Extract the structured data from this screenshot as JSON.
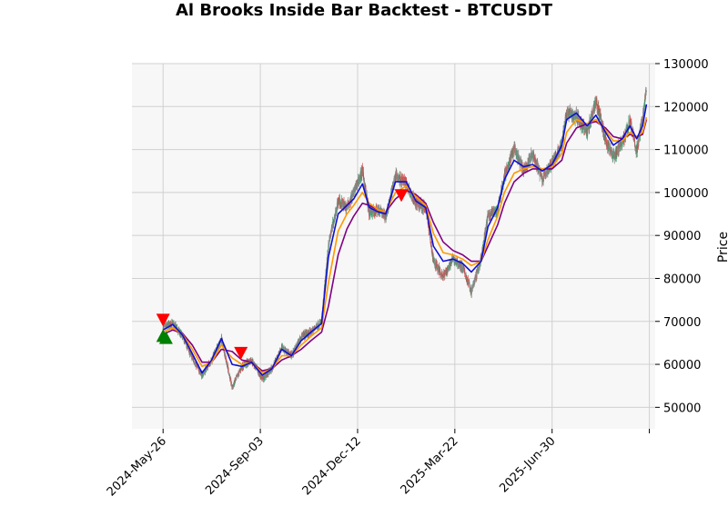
{
  "chart_data": {
    "type": "candlestick",
    "title": "Al Brooks Inside Bar Backtest - BTCUSDT",
    "ylabel": "Price",
    "xlabel": "",
    "ylim": [
      45000,
      130000
    ],
    "xlim": [
      "2024-04-24",
      "2025-10-14"
    ],
    "y_ticks": [
      50000,
      60000,
      70000,
      80000,
      90000,
      100000,
      110000,
      120000,
      130000
    ],
    "y_tick_labels": [
      "50000",
      "60000",
      "70000",
      "80000",
      "90000",
      "100000",
      "110000",
      "120000",
      "130000"
    ],
    "x_ticks": [
      "2024-05-26",
      "2024-09-03",
      "2024-12-12",
      "2025-03-22",
      "2025-06-30",
      "2025-10-08"
    ],
    "x_tick_labels": [
      "2024-May-26",
      "2024-Sep-03",
      "2024-Dec-12",
      "2025-Mar-22",
      "2025-Jun-30",
      ""
    ],
    "grid": true,
    "colors": {
      "up": "#3a9e6e",
      "down": "#d64545",
      "neutral": "#888888",
      "line_fast": "#1010d0",
      "line_mid": "#ff9900",
      "line_slow": "#800080",
      "buy_marker": "#008000",
      "sell_marker": "#ff0000",
      "plot_bg": "#f7f7f7",
      "grid": "#d0d0d0"
    },
    "price_path": [
      [
        "2024-05-26",
        68500
      ],
      [
        "2024-06-05",
        69500
      ],
      [
        "2024-06-15",
        66500
      ],
      [
        "2024-06-25",
        61500
      ],
      [
        "2024-07-05",
        57500
      ],
      [
        "2024-07-15",
        61000
      ],
      [
        "2024-07-25",
        66000
      ],
      [
        "2024-08-05",
        54500
      ],
      [
        "2024-08-15",
        59500
      ],
      [
        "2024-08-25",
        61000
      ],
      [
        "2024-09-05",
        56500
      ],
      [
        "2024-09-15",
        59000
      ],
      [
        "2024-09-25",
        64000
      ],
      [
        "2024-10-05",
        62000
      ],
      [
        "2024-10-15",
        66500
      ],
      [
        "2024-10-25",
        67500
      ],
      [
        "2024-11-05",
        70000
      ],
      [
        "2024-11-12",
        88000
      ],
      [
        "2024-11-22",
        98000
      ],
      [
        "2024-12-01",
        96500
      ],
      [
        "2024-12-08",
        100000
      ],
      [
        "2024-12-17",
        105000
      ],
      [
        "2024-12-24",
        95000
      ],
      [
        "2025-01-02",
        96000
      ],
      [
        "2025-01-10",
        94500
      ],
      [
        "2025-01-20",
        104000
      ],
      [
        "2025-01-31",
        102000
      ],
      [
        "2025-02-10",
        97500
      ],
      [
        "2025-02-20",
        96500
      ],
      [
        "2025-02-28",
        84000
      ],
      [
        "2025-03-10",
        80500
      ],
      [
        "2025-03-20",
        84500
      ],
      [
        "2025-03-30",
        82500
      ],
      [
        "2025-04-08",
        77000
      ],
      [
        "2025-04-18",
        84500
      ],
      [
        "2025-04-25",
        94500
      ],
      [
        "2025-05-05",
        96000
      ],
      [
        "2025-05-12",
        104000
      ],
      [
        "2025-05-22",
        110000
      ],
      [
        "2025-06-01",
        105000
      ],
      [
        "2025-06-10",
        109000
      ],
      [
        "2025-06-20",
        103000
      ],
      [
        "2025-06-30",
        107000
      ],
      [
        "2025-07-10",
        111000
      ],
      [
        "2025-07-15",
        119000
      ],
      [
        "2025-07-25",
        117500
      ],
      [
        "2025-08-05",
        114000
      ],
      [
        "2025-08-14",
        121500
      ],
      [
        "2025-08-24",
        112000
      ],
      [
        "2025-09-01",
        108500
      ],
      [
        "2025-09-10",
        111500
      ],
      [
        "2025-09-18",
        116500
      ],
      [
        "2025-09-25",
        109500
      ],
      [
        "2025-10-01",
        117500
      ],
      [
        "2025-10-05",
        124000
      ]
    ],
    "series": [
      {
        "name": "fast",
        "color": "#1010d0",
        "points": [
          [
            "2024-05-26",
            68000
          ],
          [
            "2024-06-05",
            69300
          ],
          [
            "2024-06-15",
            66800
          ],
          [
            "2024-06-25",
            62500
          ],
          [
            "2024-07-05",
            58000
          ],
          [
            "2024-07-15",
            61000
          ],
          [
            "2024-07-25",
            66000
          ],
          [
            "2024-08-05",
            60000
          ],
          [
            "2024-08-15",
            59500
          ],
          [
            "2024-08-25",
            60500
          ],
          [
            "2024-09-05",
            57500
          ],
          [
            "2024-09-15",
            59000
          ],
          [
            "2024-09-25",
            63500
          ],
          [
            "2024-10-05",
            62000
          ],
          [
            "2024-10-15",
            65500
          ],
          [
            "2024-10-25",
            67500
          ],
          [
            "2024-11-05",
            69500
          ],
          [
            "2024-11-12",
            85000
          ],
          [
            "2024-11-22",
            95000
          ],
          [
            "2024-12-01",
            97000
          ],
          [
            "2024-12-08",
            98500
          ],
          [
            "2024-12-17",
            102000
          ],
          [
            "2024-12-24",
            96500
          ],
          [
            "2025-01-02",
            95500
          ],
          [
            "2025-01-10",
            95000
          ],
          [
            "2025-01-20",
            102500
          ],
          [
            "2025-01-31",
            102500
          ],
          [
            "2025-02-10",
            98000
          ],
          [
            "2025-02-20",
            96500
          ],
          [
            "2025-02-28",
            87500
          ],
          [
            "2025-03-10",
            84000
          ],
          [
            "2025-03-20",
            84500
          ],
          [
            "2025-03-30",
            83500
          ],
          [
            "2025-04-08",
            81500
          ],
          [
            "2025-04-18",
            84000
          ],
          [
            "2025-04-25",
            92000
          ],
          [
            "2025-05-05",
            96500
          ],
          [
            "2025-05-12",
            103000
          ],
          [
            "2025-05-22",
            107500
          ],
          [
            "2025-06-01",
            106000
          ],
          [
            "2025-06-10",
            106500
          ],
          [
            "2025-06-20",
            105000
          ],
          [
            "2025-06-30",
            106500
          ],
          [
            "2025-07-10",
            111000
          ],
          [
            "2025-07-15",
            117000
          ],
          [
            "2025-07-25",
            118500
          ],
          [
            "2025-08-05",
            115500
          ],
          [
            "2025-08-14",
            118000
          ],
          [
            "2025-08-24",
            114000
          ],
          [
            "2025-09-01",
            111000
          ],
          [
            "2025-09-10",
            112500
          ],
          [
            "2025-09-18",
            115500
          ],
          [
            "2025-09-25",
            112500
          ],
          [
            "2025-10-01",
            115500
          ],
          [
            "2025-10-05",
            120500
          ]
        ]
      },
      {
        "name": "mid",
        "color": "#ff9900",
        "points": [
          [
            "2024-05-26",
            67500
          ],
          [
            "2024-06-05",
            68500
          ],
          [
            "2024-06-15",
            67000
          ],
          [
            "2024-06-25",
            63500
          ],
          [
            "2024-07-05",
            59500
          ],
          [
            "2024-07-15",
            60500
          ],
          [
            "2024-07-25",
            64500
          ],
          [
            "2024-08-05",
            61500
          ],
          [
            "2024-08-15",
            60000
          ],
          [
            "2024-08-25",
            60500
          ],
          [
            "2024-09-05",
            58000
          ],
          [
            "2024-09-15",
            59000
          ],
          [
            "2024-09-25",
            62000
          ],
          [
            "2024-10-05",
            62000
          ],
          [
            "2024-10-15",
            64500
          ],
          [
            "2024-10-25",
            66500
          ],
          [
            "2024-11-05",
            68500
          ],
          [
            "2024-11-12",
            79000
          ],
          [
            "2024-11-22",
            91000
          ],
          [
            "2024-12-01",
            95000
          ],
          [
            "2024-12-08",
            97000
          ],
          [
            "2024-12-17",
            100000
          ],
          [
            "2024-12-24",
            97500
          ],
          [
            "2025-01-02",
            96000
          ],
          [
            "2025-01-10",
            95500
          ],
          [
            "2025-01-20",
            100000
          ],
          [
            "2025-01-31",
            101500
          ],
          [
            "2025-02-10",
            99000
          ],
          [
            "2025-02-20",
            97000
          ],
          [
            "2025-02-28",
            90500
          ],
          [
            "2025-03-10",
            86000
          ],
          [
            "2025-03-20",
            85500
          ],
          [
            "2025-03-30",
            84500
          ],
          [
            "2025-04-08",
            83000
          ],
          [
            "2025-04-18",
            84000
          ],
          [
            "2025-04-25",
            89000
          ],
          [
            "2025-05-05",
            94500
          ],
          [
            "2025-05-12",
            100000
          ],
          [
            "2025-05-22",
            104500
          ],
          [
            "2025-06-01",
            105500
          ],
          [
            "2025-06-10",
            106000
          ],
          [
            "2025-06-20",
            105500
          ],
          [
            "2025-06-30",
            106000
          ],
          [
            "2025-07-10",
            109000
          ],
          [
            "2025-07-15",
            114000
          ],
          [
            "2025-07-25",
            117000
          ],
          [
            "2025-08-05",
            116000
          ],
          [
            "2025-08-14",
            117000
          ],
          [
            "2025-08-24",
            114500
          ],
          [
            "2025-09-01",
            112000
          ],
          [
            "2025-09-10",
            112000
          ],
          [
            "2025-09-18",
            114000
          ],
          [
            "2025-09-25",
            113000
          ],
          [
            "2025-10-01",
            114000
          ],
          [
            "2025-10-05",
            117500
          ]
        ]
      },
      {
        "name": "slow",
        "color": "#800080",
        "points": [
          [
            "2024-05-26",
            67000
          ],
          [
            "2024-06-05",
            68000
          ],
          [
            "2024-06-15",
            67200
          ],
          [
            "2024-06-25",
            64500
          ],
          [
            "2024-07-05",
            60500
          ],
          [
            "2024-07-15",
            60500
          ],
          [
            "2024-07-25",
            63500
          ],
          [
            "2024-08-05",
            63000
          ],
          [
            "2024-08-15",
            61000
          ],
          [
            "2024-08-25",
            60500
          ],
          [
            "2024-09-05",
            58500
          ],
          [
            "2024-09-15",
            59000
          ],
          [
            "2024-09-25",
            61000
          ],
          [
            "2024-10-05",
            62000
          ],
          [
            "2024-10-15",
            63500
          ],
          [
            "2024-10-25",
            65500
          ],
          [
            "2024-11-05",
            67500
          ],
          [
            "2024-11-12",
            73500
          ],
          [
            "2024-11-22",
            85500
          ],
          [
            "2024-12-01",
            91500
          ],
          [
            "2024-12-08",
            94500
          ],
          [
            "2024-12-17",
            97500
          ],
          [
            "2024-12-24",
            97000
          ],
          [
            "2025-01-02",
            96000
          ],
          [
            "2025-01-10",
            95500
          ],
          [
            "2025-01-20",
            98500
          ],
          [
            "2025-01-31",
            100500
          ],
          [
            "2025-02-10",
            99500
          ],
          [
            "2025-02-20",
            97500
          ],
          [
            "2025-02-28",
            93000
          ],
          [
            "2025-03-10",
            88500
          ],
          [
            "2025-03-20",
            86500
          ],
          [
            "2025-03-30",
            85500
          ],
          [
            "2025-04-08",
            84000
          ],
          [
            "2025-04-18",
            84000
          ],
          [
            "2025-04-25",
            87500
          ],
          [
            "2025-05-05",
            92500
          ],
          [
            "2025-05-12",
            97500
          ],
          [
            "2025-05-22",
            102500
          ],
          [
            "2025-06-01",
            104500
          ],
          [
            "2025-06-10",
            105500
          ],
          [
            "2025-06-20",
            105500
          ],
          [
            "2025-06-30",
            105500
          ],
          [
            "2025-07-10",
            107500
          ],
          [
            "2025-07-15",
            111500
          ],
          [
            "2025-07-25",
            115000
          ],
          [
            "2025-08-05",
            116000
          ],
          [
            "2025-08-14",
            116500
          ],
          [
            "2025-08-24",
            115000
          ],
          [
            "2025-09-01",
            113000
          ],
          [
            "2025-09-10",
            112500
          ],
          [
            "2025-09-18",
            113500
          ],
          [
            "2025-09-25",
            113000
          ],
          [
            "2025-10-01",
            113500
          ],
          [
            "2025-10-05",
            117000
          ]
        ]
      }
    ],
    "buy_markers": [
      {
        "date": "2024-05-26",
        "price": 66500
      },
      {
        "date": "2024-05-29",
        "price": 66000
      }
    ],
    "sell_markers": [
      {
        "date": "2024-05-26",
        "price": 70500
      },
      {
        "date": "2024-08-14",
        "price": 62800
      },
      {
        "date": "2025-01-26",
        "price": 99500
      }
    ]
  }
}
